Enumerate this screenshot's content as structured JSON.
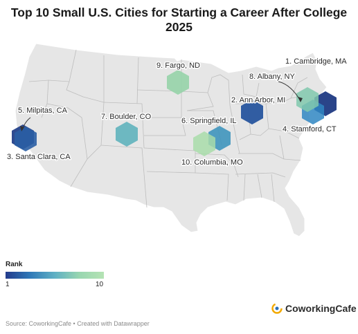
{
  "title": "Top 10 Small U.S. Cities for Starting a Career After College 2025",
  "legend": {
    "title": "Rank",
    "min_label": "1",
    "max_label": "10"
  },
  "colors": {
    "land": "#e6e6e6",
    "borders": "#bdbdbd",
    "rank_low": "#233b8c",
    "rank_high": "#b5e3b4"
  },
  "cities": [
    {
      "rank": 1,
      "label": "1. Cambridge, MA",
      "color": "#1f3a83"
    },
    {
      "rank": 2,
      "label": "2. Ann Arbor, MI",
      "color": "#27559e"
    },
    {
      "rank": 3,
      "label": "3. Santa Clara, CA",
      "color": "#24418a"
    },
    {
      "rank": 4,
      "label": "4. Stamford, CT",
      "color": "#2f86c2"
    },
    {
      "rank": 5,
      "label": "5. Milpitas, CA",
      "color": "#2a5ea4"
    },
    {
      "rank": 6,
      "label": "6. Springfield, IL",
      "color": "#3f95bd"
    },
    {
      "rank": 7,
      "label": "7. Boulder, CO",
      "color": "#5fb2bd"
    },
    {
      "rank": 8,
      "label": "8. Albany, NY",
      "color": "#80c8ad"
    },
    {
      "rank": 9,
      "label": "9. Fargo, ND",
      "color": "#96d3a8"
    },
    {
      "rank": 10,
      "label": "10. Columbia, MO",
      "color": "#a8dca9"
    }
  ],
  "brand": {
    "name": "CoworkingCafe",
    "icon": "coworkingcafe-logo-icon"
  },
  "source": "Source: CoworkingCafe • Created with Datawrapper"
}
